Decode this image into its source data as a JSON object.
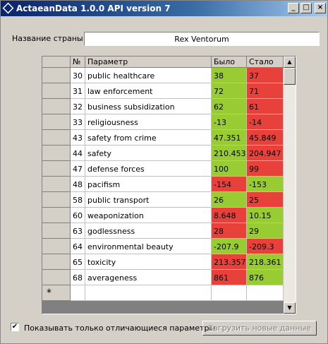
{
  "window": {
    "title": "ActaeanData 1.0.0 API version 7"
  },
  "country": {
    "label": "Название страны",
    "value": "Rex Ventorum"
  },
  "table": {
    "headers": [
      "№",
      "Параметр",
      "Было",
      "Стало"
    ],
    "rows": [
      [
        "30",
        "public healthcare",
        "38",
        "37"
      ],
      [
        "31",
        "law enforcement",
        "72",
        "71"
      ],
      [
        "32",
        "business subsidization",
        "62",
        "61"
      ],
      [
        "33",
        "religiousness",
        "-13",
        "-14"
      ],
      [
        "43",
        "safety from crime",
        "47.351",
        "45.849"
      ],
      [
        "44",
        "safety",
        "210.453",
        "204.947"
      ],
      [
        "47",
        "defense forces",
        "100",
        "99"
      ],
      [
        "48",
        "pacifism",
        "-154",
        "-153"
      ],
      [
        "58",
        "public transport",
        "26",
        "25"
      ],
      [
        "60",
        "weaponization",
        "8.648",
        "10.15"
      ],
      [
        "63",
        "godlessness",
        "28",
        "29"
      ],
      [
        "64",
        "environmental beauty",
        "-207.9",
        "-209.3"
      ],
      [
        "65",
        "toxicity",
        "213.357",
        "218.361"
      ],
      [
        "68",
        "averageness",
        "861",
        "876"
      ]
    ],
    "cell_colors": [
      [
        "#99cc33",
        "#e8413c"
      ],
      [
        "#99cc33",
        "#e8413c"
      ],
      [
        "#99cc33",
        "#e8413c"
      ],
      [
        "#99cc33",
        "#e8413c"
      ],
      [
        "#99cc33",
        "#e8413c"
      ],
      [
        "#99cc33",
        "#e8413c"
      ],
      [
        "#99cc33",
        "#e8413c"
      ],
      [
        "#e8413c",
        "#99cc33"
      ],
      [
        "#99cc33",
        "#e8413c"
      ],
      [
        "#e8413c",
        "#99cc33"
      ],
      [
        "#e8413c",
        "#99cc33"
      ],
      [
        "#99cc33",
        "#e8413c"
      ],
      [
        "#e8413c",
        "#99cc33"
      ],
      [
        "#e8413c",
        "#99cc33"
      ]
    ],
    "new_row_marker": "*"
  },
  "filter": {
    "label": "Показывать только отличающиеся параметры",
    "checked": true
  },
  "button": {
    "label": "Загрузить новые данные",
    "enabled": false
  }
}
